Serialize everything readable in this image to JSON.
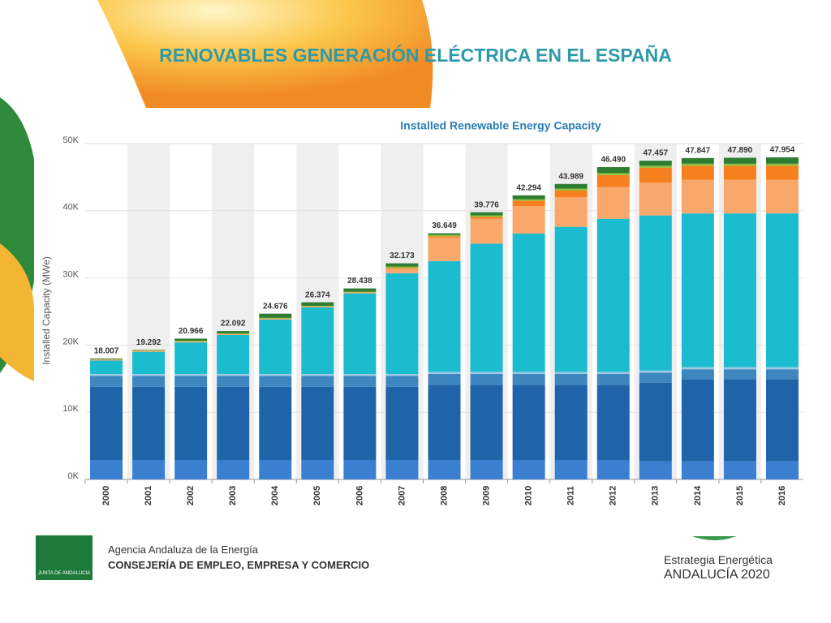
{
  "slide_title": "RENOVABLES GENERACIÓN ELÉCTRICA EN EL ESPAÑA",
  "footer": {
    "logo_text": "JUNTA DE ANDALUCIA",
    "agency": "Agencia Andaluza de la Energía",
    "ministry": "CONSEJERÍA DE EMPLEO, EMPRESA Y COMERCIO",
    "strategy": "Estrategia Energética",
    "region": "ANDALUCÍA 2020"
  },
  "chart_data": {
    "type": "stacked_bar",
    "title": "Installed Renewable Energy Capacity",
    "y_label": "Installed Capacity (MWe)",
    "categories": [
      "2000",
      "2001",
      "2002",
      "2003",
      "2004",
      "2005",
      "2006",
      "2007",
      "2008",
      "2009",
      "2010",
      "2011",
      "2012",
      "2013",
      "2014",
      "2015",
      "2016"
    ],
    "series": [
      {
        "color": "#3a7fd0",
        "values": [
          2900,
          2900,
          2900,
          2900,
          2900,
          2900,
          2900,
          2900,
          2900,
          2900,
          2900,
          2900,
          2900,
          2700,
          2700,
          2700,
          2700
        ]
      },
      {
        "color": "#1f64a8",
        "values": [
          10900,
          10900,
          10900,
          10900,
          10900,
          10900,
          10900,
          10900,
          11200,
          11200,
          11200,
          11200,
          11200,
          11700,
          12200,
          12200,
          12200
        ]
      },
      {
        "color": "#3d86c0",
        "values": [
          1600,
          1600,
          1600,
          1600,
          1600,
          1600,
          1600,
          1600,
          1600,
          1600,
          1600,
          1600,
          1600,
          1500,
          1500,
          1500,
          1500
        ]
      },
      {
        "color": "#9ec9e2",
        "values": [
          300,
          300,
          300,
          300,
          300,
          300,
          300,
          300,
          300,
          300,
          300,
          300,
          300,
          300,
          300,
          300,
          300
        ]
      },
      {
        "color": "#1bbcd0",
        "values": [
          2000,
          3300,
          4700,
          5800,
          8100,
          9900,
          12000,
          15000,
          16500,
          19100,
          20600,
          21600,
          22800,
          23100,
          22900,
          22900,
          22900
        ]
      },
      {
        "color": "#f8a86a",
        "values": [
          100,
          100,
          100,
          100,
          100,
          100,
          100,
          700,
          3500,
          3700,
          4100,
          4400,
          4700,
          4900,
          5000,
          5000,
          5000
        ]
      },
      {
        "color": "#f7801e",
        "values": [
          50,
          50,
          50,
          50,
          50,
          50,
          50,
          100,
          200,
          300,
          800,
          1000,
          1800,
          2200,
          2100,
          2100,
          2100
        ]
      },
      {
        "color": "#8fbf3a",
        "values": [
          50,
          100,
          100,
          100,
          100,
          100,
          100,
          200,
          200,
          200,
          200,
          300,
          300,
          300,
          300,
          300,
          300
        ]
      },
      {
        "color": "#2e7d32",
        "values": [
          107,
          42,
          316,
          342,
          626,
          524,
          488,
          473,
          249,
          476,
          594,
          689,
          890,
          757,
          847,
          890,
          954
        ]
      }
    ],
    "totals": [
      18007,
      19292,
      20966,
      22092,
      24676,
      26374,
      28438,
      32173,
      36649,
      39776,
      42294,
      43989,
      46490,
      47457,
      47847,
      47890,
      47954
    ],
    "value_labels": [
      "18.007",
      "19.292",
      "20.966",
      "22.092",
      "24.676",
      "26.374",
      "28.438",
      "32.173",
      "36.649",
      "39.776",
      "42.294",
      "43.989",
      "46.490",
      "47.457",
      "47.847",
      "47.890",
      "47.954"
    ],
    "ylim": [
      0,
      50000
    ],
    "yticks": [
      {
        "value": 0,
        "label": "0K"
      },
      {
        "value": 10000,
        "label": "10K"
      },
      {
        "value": 20000,
        "label": "20K"
      },
      {
        "value": 30000,
        "label": "30K"
      },
      {
        "value": 40000,
        "label": "40K"
      },
      {
        "value": 50000,
        "label": "50K"
      }
    ],
    "grid": true,
    "band_shading": true
  }
}
